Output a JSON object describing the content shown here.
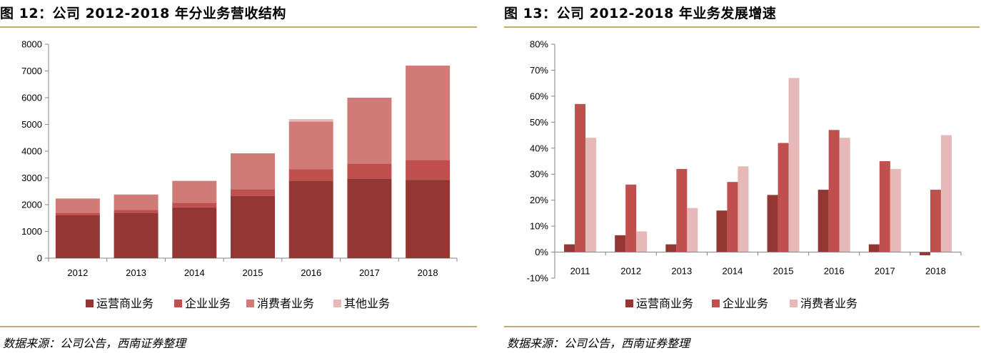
{
  "figures": [
    {
      "id": "left",
      "title": "图 12：公司 2012-2018 年分业务营收结构",
      "source": "数据来源：公司公告，西南证券整理"
    },
    {
      "id": "right",
      "title": "图 13：公司 2012-2018 年业务发展增速",
      "source": "数据来源：公司公告，西南证券整理"
    }
  ],
  "chart_data": [
    {
      "type": "bar",
      "stacked": true,
      "title": "",
      "xlabel": "",
      "ylabel": "",
      "categories": [
        "2012",
        "2013",
        "2014",
        "2015",
        "2016",
        "2017",
        "2018"
      ],
      "series": [
        {
          "name": "运营商业务",
          "color": "#943634",
          "values": [
            1600,
            1680,
            1900,
            2330,
            2900,
            2980,
            2930
          ]
        },
        {
          "name": "企业业务",
          "color": "#c0504d",
          "values": [
            100,
            120,
            170,
            250,
            420,
            560,
            740
          ]
        },
        {
          "name": "消费者业务",
          "color": "#d17b79",
          "values": [
            530,
            580,
            820,
            1340,
            1790,
            2460,
            3530
          ]
        },
        {
          "name": "其他业务",
          "color": "#e6b9b8",
          "values": [
            0,
            0,
            0,
            0,
            90,
            0,
            0
          ]
        }
      ],
      "ylim": [
        0,
        8000
      ],
      "yticks": [
        0,
        1000,
        2000,
        3000,
        4000,
        5000,
        6000,
        7000,
        8000
      ],
      "ytick_labels": [
        "0",
        "1000",
        "2000",
        "3000",
        "4000",
        "5000",
        "6000",
        "7000",
        "8000"
      ],
      "grid": false,
      "legend_position": "bottom"
    },
    {
      "type": "bar",
      "stacked": false,
      "title": "",
      "xlabel": "",
      "ylabel": "",
      "categories": [
        "2011",
        "2012",
        "2013",
        "2014",
        "2015",
        "2016",
        "2017",
        "2018"
      ],
      "series": [
        {
          "name": "运营商业务",
          "color": "#943634",
          "values": [
            3,
            6.5,
            3,
            16,
            22,
            24,
            3,
            -1.2
          ]
        },
        {
          "name": "企业业务",
          "color": "#c0504d",
          "values": [
            57,
            26,
            32,
            27,
            42,
            47,
            35,
            24
          ]
        },
        {
          "name": "消费者业务",
          "color": "#e6b9b8",
          "values": [
            44,
            8,
            17,
            33,
            67,
            44,
            32,
            45
          ]
        }
      ],
      "ylim": [
        -10,
        80
      ],
      "yticks": [
        -10,
        0,
        10,
        20,
        30,
        40,
        50,
        60,
        70,
        80
      ],
      "ytick_labels": [
        "-10%",
        "0%",
        "10%",
        "20%",
        "30%",
        "40%",
        "50%",
        "60%",
        "70%",
        "80%"
      ],
      "grid": false,
      "legend_position": "bottom"
    }
  ]
}
